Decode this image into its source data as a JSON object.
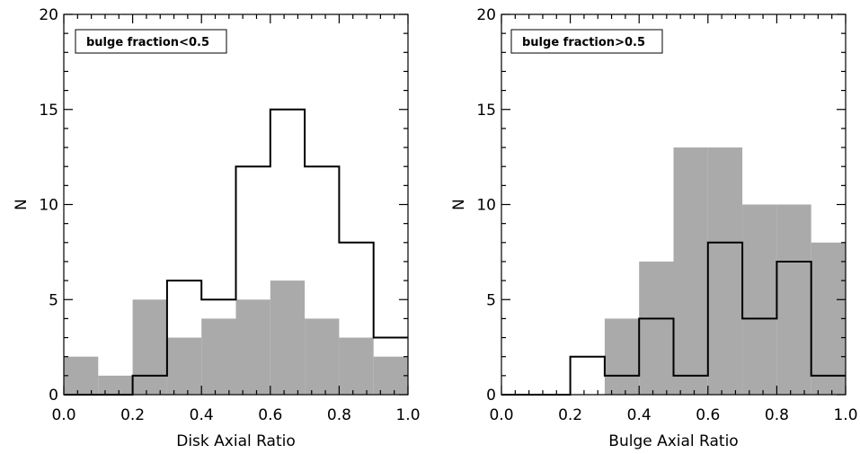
{
  "chart_data": [
    {
      "type": "bar",
      "xlabel": "Disk Axial Ratio",
      "ylabel": "N",
      "xlim": [
        0.0,
        1.0
      ],
      "ylim": [
        0,
        20
      ],
      "xticks": [
        "0.0",
        "0.2",
        "0.4",
        "0.6",
        "0.8",
        "1.0"
      ],
      "yticks": [
        "0",
        "5",
        "10",
        "15",
        "20"
      ],
      "legend": "bulge fraction<0.5",
      "legend_position": "top-left",
      "bin_edges": [
        0.0,
        0.1,
        0.2,
        0.3,
        0.4,
        0.5,
        0.6,
        0.7,
        0.8,
        0.9,
        1.0
      ],
      "series": [
        {
          "style": "filled-gray",
          "color": "#aaaaaa",
          "values": [
            2,
            1,
            5,
            3,
            4,
            5,
            6,
            4,
            3,
            2
          ]
        },
        {
          "style": "black-outline",
          "color": "#000000",
          "values": [
            0,
            0,
            1,
            6,
            5,
            12,
            15,
            12,
            8,
            3
          ]
        }
      ]
    },
    {
      "type": "bar",
      "xlabel": "Bulge Axial Ratio",
      "ylabel": "N",
      "xlim": [
        0.0,
        1.0
      ],
      "ylim": [
        0,
        20
      ],
      "xticks": [
        "0.0",
        "0.2",
        "0.4",
        "0.6",
        "0.8",
        "1.0"
      ],
      "yticks": [
        "0",
        "5",
        "10",
        "15",
        "20"
      ],
      "legend": "bulge fraction>0.5",
      "legend_position": "top-left",
      "bin_edges": [
        0.0,
        0.1,
        0.2,
        0.3,
        0.4,
        0.5,
        0.6,
        0.7,
        0.8,
        0.9,
        1.0
      ],
      "series": [
        {
          "style": "filled-gray",
          "color": "#aaaaaa",
          "values": [
            0,
            0,
            0,
            4,
            7,
            13,
            13,
            10,
            10,
            8
          ]
        },
        {
          "style": "black-outline",
          "color": "#000000",
          "values": [
            0,
            0,
            2,
            1,
            4,
            1,
            8,
            4,
            7,
            1
          ]
        }
      ]
    }
  ]
}
